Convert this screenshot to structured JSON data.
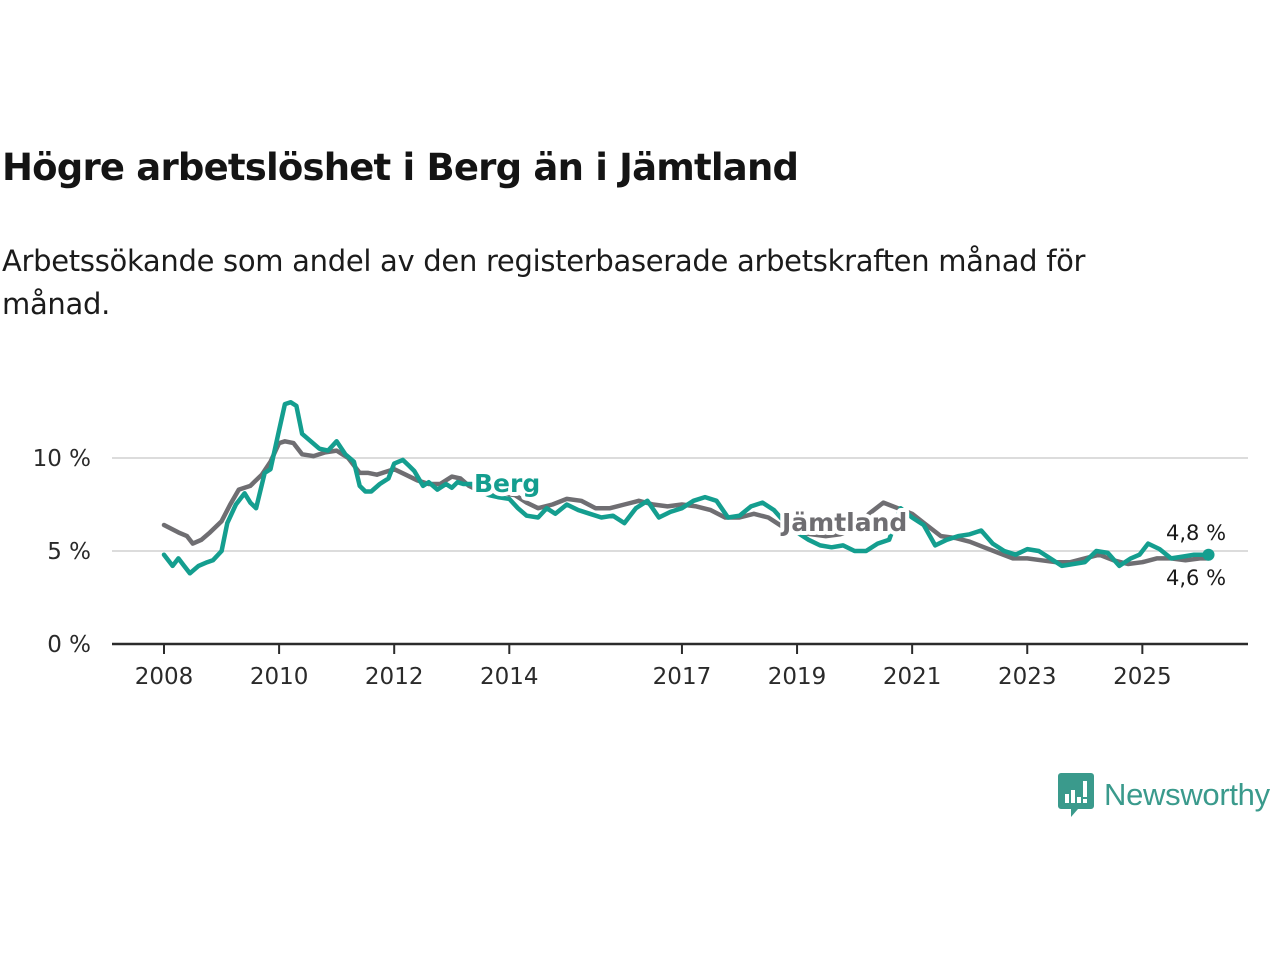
{
  "header": {
    "title": "Högre arbetslöshet i Berg än i Jämtland",
    "subtitle": "Arbetssökande som andel av den registerbaserade arbetskraften månad för månad."
  },
  "brand": {
    "name": "Newsworthy",
    "icon": "newsworthy-logo-icon",
    "color": "#3a9a8c"
  },
  "chart_data": {
    "type": "line",
    "title": "Högre arbetslöshet i Berg än i Jämtland",
    "subtitle": "Arbetssökande som andel av den registerbaserade arbetskraften månad för månad.",
    "xlabel": "",
    "ylabel": "",
    "xlim": [
      2007.75,
      2027.1
    ],
    "ylim": [
      0,
      13
    ],
    "y_ticks": [
      0,
      5,
      10
    ],
    "y_tick_labels": [
      "0 %",
      "5 %",
      "10 %"
    ],
    "x_ticks": [
      2008,
      2010,
      2012,
      2014,
      2017,
      2019,
      2021,
      2023,
      2025
    ],
    "x_tick_labels": [
      "2008",
      "2010",
      "2012",
      "2014",
      "2017",
      "2019",
      "2021",
      "2023",
      "2025"
    ],
    "grid": "horizontal",
    "legend": "inline-labels",
    "series": [
      {
        "name": "Jämtland",
        "color": "#6f6e72",
        "label_position": "2019.9",
        "end_label": "4,6 %",
        "x": [
          2008.0,
          2008.25,
          2008.4,
          2008.5,
          2008.65,
          2008.8,
          2009.0,
          2009.15,
          2009.3,
          2009.5,
          2009.7,
          2009.85,
          2010.0,
          2010.1,
          2010.25,
          2010.4,
          2010.6,
          2010.8,
          2011.0,
          2011.2,
          2011.4,
          2011.55,
          2011.7,
          2011.9,
          2012.0,
          2012.2,
          2012.4,
          2012.6,
          2012.8,
          2013.0,
          2013.15,
          2013.3,
          2013.5,
          2013.7,
          2013.9,
          2014.1,
          2014.3,
          2014.5,
          2014.75,
          2015.0,
          2015.25,
          2015.5,
          2015.75,
          2016.0,
          2016.25,
          2016.5,
          2016.75,
          2017.0,
          2017.25,
          2017.5,
          2017.75,
          2018.0,
          2018.25,
          2018.5,
          2018.75,
          2019.0,
          2019.25,
          2019.5,
          2019.75,
          2020.0,
          2020.25,
          2020.5,
          2020.75,
          2021.0,
          2021.25,
          2021.5,
          2021.75,
          2022.0,
          2022.25,
          2022.5,
          2022.75,
          2023.0,
          2023.25,
          2023.5,
          2023.75,
          2024.0,
          2024.25,
          2024.5,
          2024.75,
          2025.0,
          2025.25,
          2025.5,
          2025.75,
          2026.0,
          2026.15
        ],
        "values": [
          6.4,
          6.0,
          5.8,
          5.4,
          5.6,
          6.0,
          6.6,
          7.5,
          8.3,
          8.5,
          9.1,
          9.8,
          10.8,
          10.9,
          10.8,
          10.2,
          10.1,
          10.3,
          10.4,
          10.0,
          9.2,
          9.2,
          9.1,
          9.3,
          9.4,
          9.1,
          8.8,
          8.6,
          8.6,
          9.0,
          8.9,
          8.5,
          8.2,
          8.0,
          8.1,
          8.0,
          7.6,
          7.3,
          7.5,
          7.8,
          7.7,
          7.3,
          7.3,
          7.5,
          7.7,
          7.5,
          7.4,
          7.5,
          7.4,
          7.2,
          6.8,
          6.8,
          7.0,
          6.8,
          6.3,
          6.0,
          5.9,
          5.8,
          5.9,
          6.2,
          7.0,
          7.6,
          7.3,
          7.0,
          6.4,
          5.8,
          5.7,
          5.5,
          5.2,
          4.9,
          4.6,
          4.6,
          4.5,
          4.4,
          4.4,
          4.6,
          4.8,
          4.5,
          4.3,
          4.4,
          4.6,
          4.6,
          4.5,
          4.6,
          4.6
        ]
      },
      {
        "name": "Berg",
        "color": "#149e8f",
        "label_position": "2013.7",
        "end_label": "4,8 %",
        "x": [
          2008.0,
          2008.15,
          2008.25,
          2008.35,
          2008.45,
          2008.6,
          2008.75,
          2008.85,
          2009.0,
          2009.1,
          2009.25,
          2009.4,
          2009.5,
          2009.6,
          2009.75,
          2009.85,
          2010.0,
          2010.1,
          2010.2,
          2010.3,
          2010.4,
          2010.55,
          2010.7,
          2010.85,
          2011.0,
          2011.15,
          2011.3,
          2011.4,
          2011.5,
          2011.6,
          2011.75,
          2011.9,
          2012.0,
          2012.15,
          2012.25,
          2012.35,
          2012.5,
          2012.6,
          2012.75,
          2012.9,
          2013.0,
          2013.1,
          2013.2,
          2013.35,
          2013.5,
          2013.65,
          2013.8,
          2014.0,
          2014.15,
          2014.3,
          2014.5,
          2014.65,
          2014.8,
          2015.0,
          2015.2,
          2015.4,
          2015.6,
          2015.8,
          2016.0,
          2016.2,
          2016.4,
          2016.6,
          2016.8,
          2017.0,
          2017.2,
          2017.4,
          2017.6,
          2017.8,
          2018.0,
          2018.2,
          2018.4,
          2018.6,
          2018.8,
          2019.0,
          2019.2,
          2019.4,
          2019.6,
          2019.8,
          2020.0,
          2020.2,
          2020.4,
          2020.6,
          2020.8,
          2021.0,
          2021.2,
          2021.4,
          2021.6,
          2021.8,
          2022.0,
          2022.2,
          2022.4,
          2022.6,
          2022.8,
          2023.0,
          2023.2,
          2023.4,
          2023.6,
          2023.8,
          2024.0,
          2024.2,
          2024.4,
          2024.6,
          2024.8,
          2024.95,
          2025.1,
          2025.3,
          2025.5,
          2025.7,
          2025.9,
          2026.05,
          2026.15
        ],
        "values": [
          4.8,
          4.2,
          4.6,
          4.2,
          3.8,
          4.2,
          4.4,
          4.5,
          5.0,
          6.5,
          7.5,
          8.1,
          7.6,
          7.3,
          9.2,
          9.4,
          11.5,
          12.9,
          13.0,
          12.8,
          11.3,
          10.9,
          10.5,
          10.4,
          10.9,
          10.2,
          9.8,
          8.5,
          8.2,
          8.2,
          8.6,
          8.9,
          9.7,
          9.9,
          9.6,
          9.3,
          8.5,
          8.7,
          8.3,
          8.6,
          8.4,
          8.7,
          8.6,
          8.6,
          8.2,
          8.0,
          7.9,
          7.8,
          7.3,
          6.9,
          6.8,
          7.3,
          7.0,
          7.5,
          7.2,
          7.0,
          6.8,
          6.9,
          6.5,
          7.3,
          7.7,
          6.8,
          7.1,
          7.3,
          7.7,
          7.9,
          7.7,
          6.8,
          6.9,
          7.4,
          7.6,
          7.2,
          6.5,
          6.0,
          5.6,
          5.3,
          5.2,
          5.3,
          5.0,
          5.0,
          5.4,
          5.6,
          7.3,
          6.8,
          6.4,
          5.3,
          5.6,
          5.8,
          5.9,
          6.1,
          5.4,
          5.0,
          4.8,
          5.1,
          5.0,
          4.6,
          4.2,
          4.3,
          4.4,
          5.0,
          4.9,
          4.2,
          4.6,
          4.8,
          5.4,
          5.1,
          4.6,
          4.7,
          4.8,
          4.8,
          4.8
        ]
      }
    ]
  }
}
